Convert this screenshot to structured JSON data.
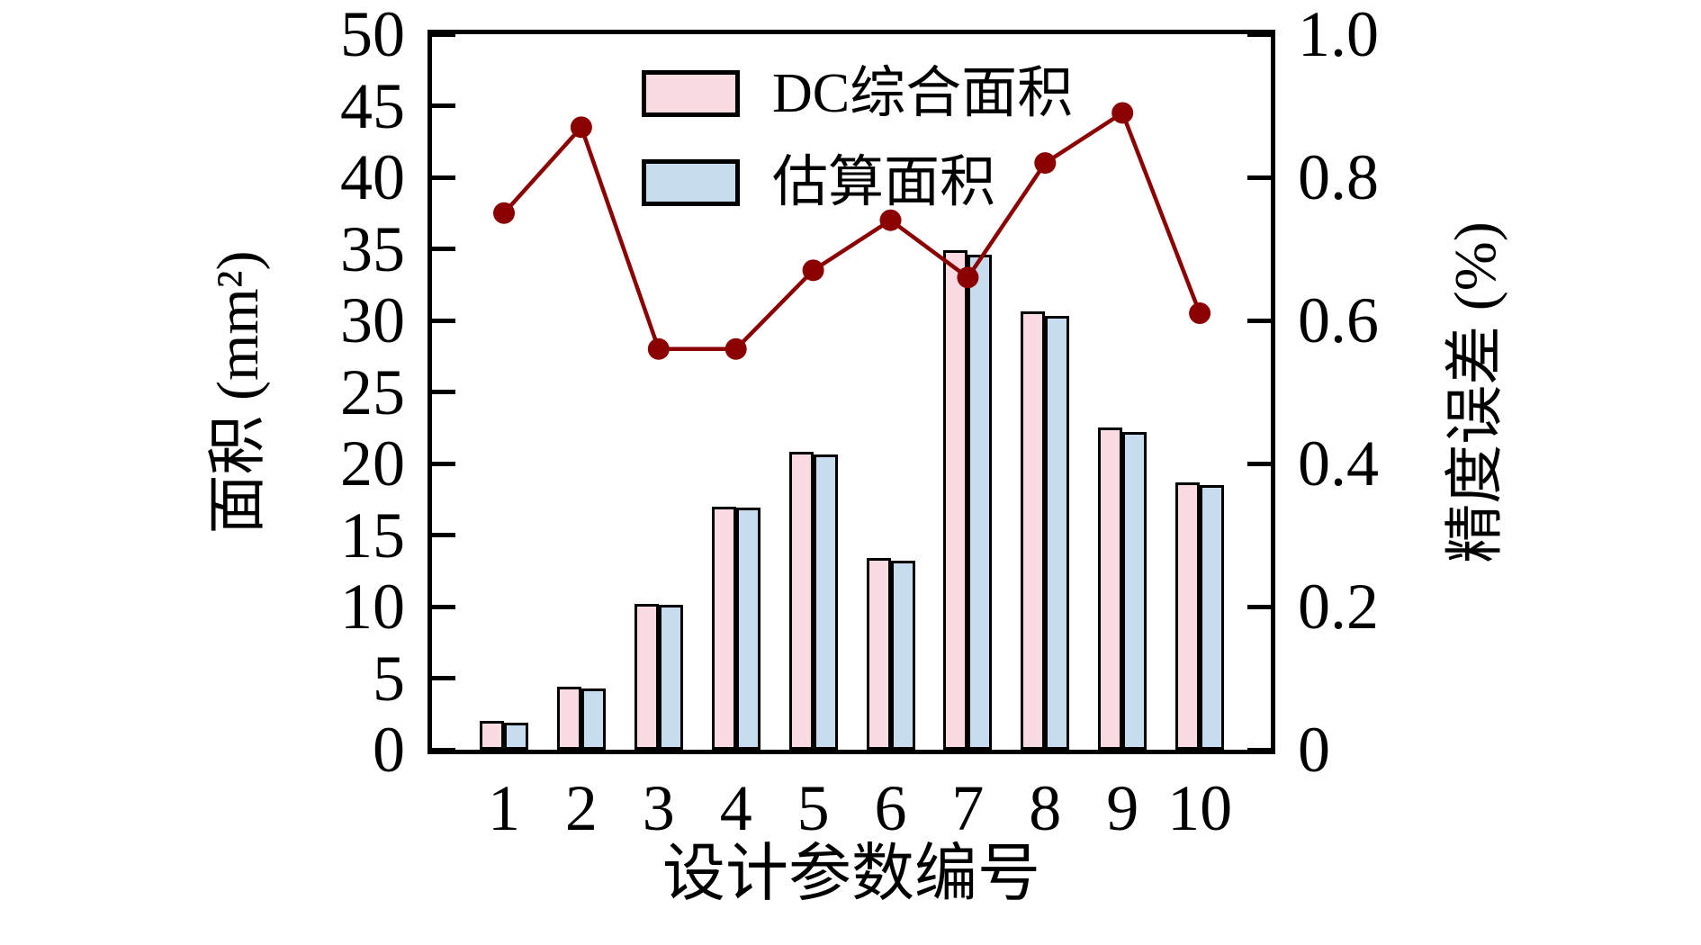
{
  "chart_data": {
    "type": "bar+line",
    "title": "",
    "categories": [
      "1",
      "2",
      "3",
      "4",
      "5",
      "6",
      "7",
      "8",
      "9",
      "10"
    ],
    "xlabel": "设计参数编号",
    "left_axis": {
      "label": "面积 (mm²)",
      "lim": [
        0,
        50
      ],
      "ticks": [
        0,
        5,
        10,
        15,
        20,
        25,
        30,
        35,
        40,
        45,
        50
      ],
      "tick_labels": [
        "0",
        "5",
        "10",
        "15",
        "20",
        "25",
        "30",
        "35",
        "40",
        "45",
        "50"
      ]
    },
    "right_axis": {
      "label": "精度误差 (%)",
      "lim": [
        0,
        1.0
      ],
      "ticks": [
        0,
        0.2,
        0.4,
        0.6,
        0.8,
        1.0
      ],
      "tick_labels": [
        "0",
        "0.2",
        "0.4",
        "0.6",
        "0.8",
        "1.0"
      ]
    },
    "series": [
      {
        "name": "DC综合面积",
        "type": "bar",
        "axis": "left",
        "color": "#f9dbe1",
        "edge_color": "#000000",
        "values": [
          2.0,
          4.4,
          10.2,
          17.0,
          20.8,
          13.4,
          34.9,
          30.6,
          22.5,
          18.7
        ]
      },
      {
        "name": "估算面积",
        "type": "bar",
        "axis": "left",
        "color": "#c8dcef",
        "edge_color": "#000000",
        "values": [
          1.9,
          4.3,
          10.1,
          16.9,
          20.6,
          13.2,
          34.6,
          30.3,
          22.2,
          18.5
        ]
      },
      {
        "name": "精度误差",
        "type": "line",
        "axis": "right",
        "color": "#8b0000",
        "marker": "circle",
        "values": [
          0.75,
          0.87,
          0.56,
          0.56,
          0.67,
          0.74,
          0.66,
          0.82,
          0.89,
          0.61
        ]
      }
    ],
    "legend": {
      "position": "upper-left-of-center",
      "frame": false
    },
    "grid": false
  }
}
